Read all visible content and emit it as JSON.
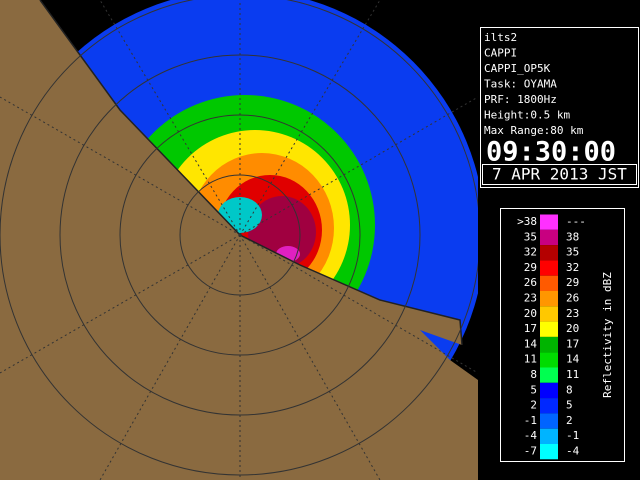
{
  "info": {
    "lines": [
      "ilts2",
      "CAPPI",
      "CAPPI_OP5K",
      "Task: OYAMA",
      "PRF: 1800Hz",
      "Height:0.5 km",
      "Max Range:80 km"
    ],
    "time": "09:30:00",
    "date": "7 APR 2013 JST"
  },
  "legend": {
    "title": "Reflectivity in dBZ",
    "rows": [
      {
        "low": ">38",
        "high": "---",
        "color": "#ff30ff"
      },
      {
        "low": "35",
        "high": "38",
        "color": "#c80080"
      },
      {
        "low": "32",
        "high": "35",
        "color": "#b40000"
      },
      {
        "low": "29",
        "high": "32",
        "color": "#ff0000"
      },
      {
        "low": "26",
        "high": "29",
        "color": "#ff5a00"
      },
      {
        "low": "23",
        "high": "26",
        "color": "#ff9600"
      },
      {
        "low": "20",
        "high": "23",
        "color": "#ffc800"
      },
      {
        "low": "17",
        "high": "20",
        "color": "#ffff00"
      },
      {
        "low": "14",
        "high": "17",
        "color": "#00b400"
      },
      {
        "low": "11",
        "high": "14",
        "color": "#00dc00"
      },
      {
        "low": "8",
        "high": "11",
        "color": "#00ff50"
      },
      {
        "low": "5",
        "high": "8",
        "color": "#0000ff"
      },
      {
        "low": "2",
        "high": "5",
        "color": "#0028ff"
      },
      {
        "low": "-1",
        "high": "2",
        "color": "#0064ff"
      },
      {
        "low": "-4",
        "high": "-1",
        "color": "#00b4ff"
      },
      {
        "low": "-7",
        "high": "-4",
        "color": "#00ffff"
      }
    ]
  }
}
